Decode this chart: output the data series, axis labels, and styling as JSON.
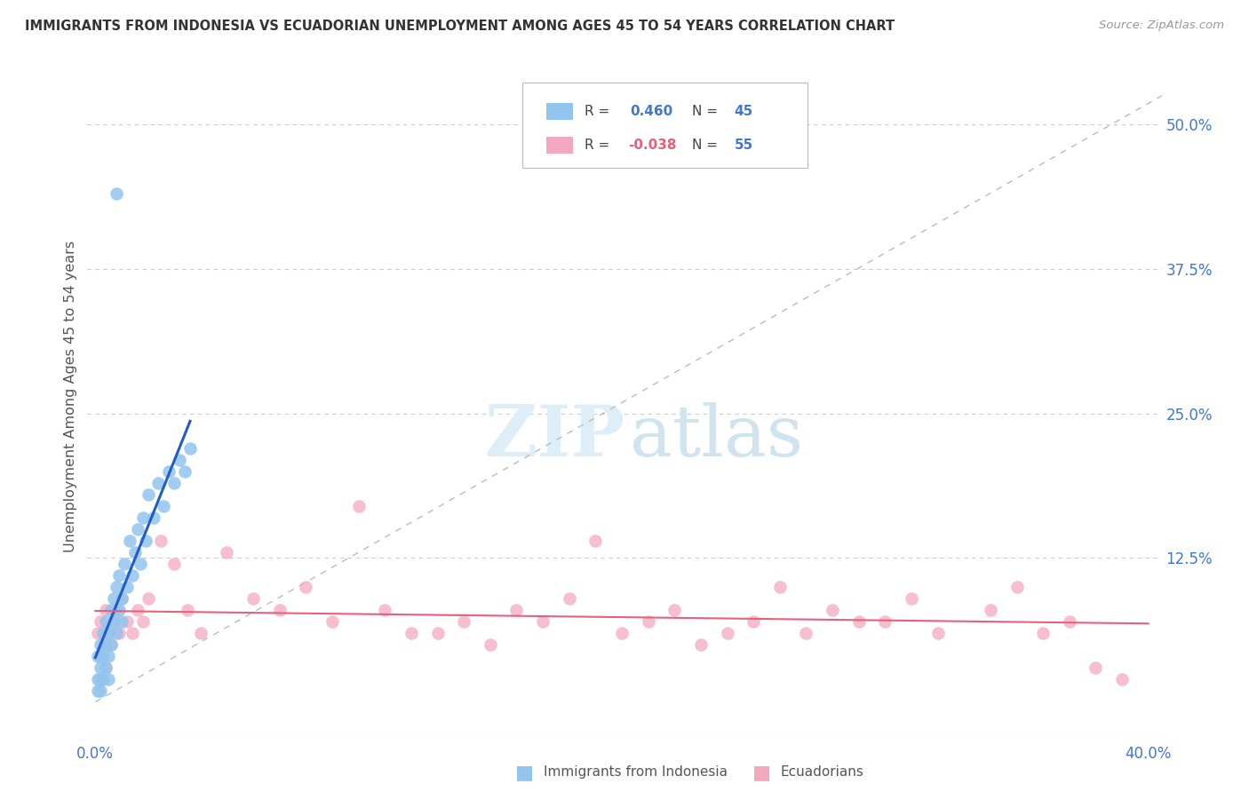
{
  "title": "IMMIGRANTS FROM INDONESIA VS ECUADORIAN UNEMPLOYMENT AMONG AGES 45 TO 54 YEARS CORRELATION CHART",
  "source": "Source: ZipAtlas.com",
  "ylabel": "Unemployment Among Ages 45 to 54 years",
  "xlim": [
    -0.003,
    0.405
  ],
  "ylim": [
    -0.03,
    0.56
  ],
  "x_ticks": [
    0.0,
    0.1,
    0.2,
    0.3,
    0.4
  ],
  "x_tick_labels": [
    "0.0%",
    "",
    "",
    "",
    "40.0%"
  ],
  "y_ticks_right": [
    0.125,
    0.25,
    0.375,
    0.5
  ],
  "y_tick_labels_right": [
    "12.5%",
    "25.0%",
    "37.5%",
    "50.0%"
  ],
  "R_blue": 0.46,
  "N_blue": 45,
  "R_pink": -0.038,
  "N_pink": 55,
  "legend_labels": [
    "Immigrants from Indonesia",
    "Ecuadorians"
  ],
  "blue_color": "#92C5EE",
  "pink_color": "#F4A8C0",
  "blue_line_color": "#1F5DC8",
  "pink_line_color": "#E8607A",
  "grid_color": "#CCCCCC",
  "dash_color": "#BBBBBB"
}
